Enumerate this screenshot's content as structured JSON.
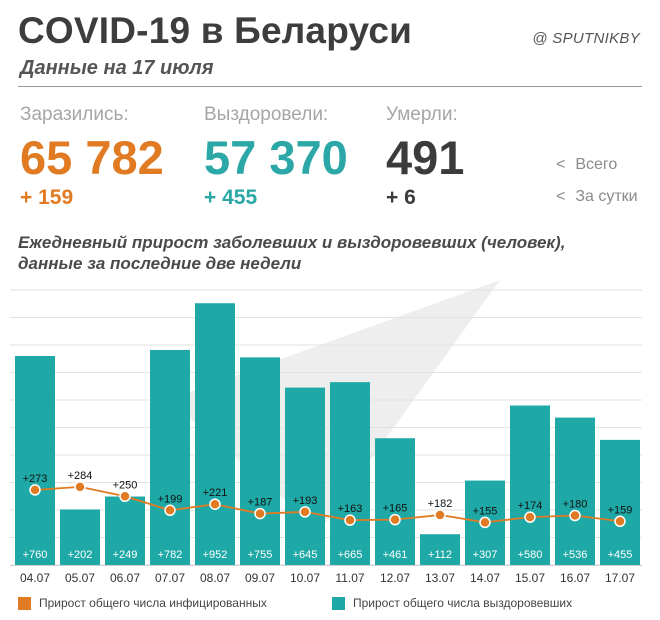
{
  "header": {
    "title": "COVID-19 в Беларуси",
    "subtitle": "Данные на 17 июля",
    "source": "@ SPUTNIKBY"
  },
  "stats": {
    "infected": {
      "label": "Заразились:",
      "total": "65 782",
      "delta": "+ 159"
    },
    "recovered": {
      "label": "Выздоровели:",
      "total": "57 370",
      "delta": "+ 455"
    },
    "died": {
      "label": "Умерли:",
      "total": "491",
      "delta": "+ 6"
    }
  },
  "hints": {
    "total": "Всего",
    "daily": "За сутки"
  },
  "colors": {
    "infected": "#e07b24",
    "recovered": "#1fa9a6",
    "dark": "#3b3b3b"
  },
  "chart_data": {
    "type": "bar",
    "title": "Ежедневный прирост заболевших и выздоровевших (человек), данные за последние две недели",
    "categories": [
      "04.07",
      "05.07",
      "06.07",
      "07.07",
      "08.07",
      "09.07",
      "10.07",
      "11.07",
      "12.07",
      "13.07",
      "14.07",
      "15.07",
      "16.07",
      "17.07"
    ],
    "series": [
      {
        "name": "Прирост общего числа выздоровевших",
        "kind": "bar",
        "color": "#1fa9a6",
        "values": [
          760,
          202,
          249,
          782,
          952,
          755,
          645,
          665,
          461,
          112,
          307,
          580,
          536,
          455
        ],
        "labels": [
          "+760",
          "+202",
          "+249",
          "+782",
          "+952",
          "+755",
          "+645",
          "+665",
          "+461",
          "+112",
          "+307",
          "+580",
          "+536",
          "+455"
        ]
      },
      {
        "name": "Прирост общего числа инфицированных",
        "kind": "line",
        "color": "#e07b24",
        "values": [
          273,
          284,
          250,
          199,
          221,
          187,
          193,
          163,
          165,
          182,
          155,
          174,
          180,
          159
        ],
        "labels": [
          "+273",
          "+284",
          "+250",
          "+199",
          "+221",
          "+187",
          "+193",
          "+163",
          "+165",
          "+182",
          "+155",
          "+174",
          "+180",
          "+159"
        ]
      }
    ],
    "ylim": [
      0,
      1000
    ],
    "grid": true
  },
  "legend": {
    "infected": "Прирост общего числа инфицированных",
    "recovered": "Прирост общего числа выздоровевших"
  }
}
